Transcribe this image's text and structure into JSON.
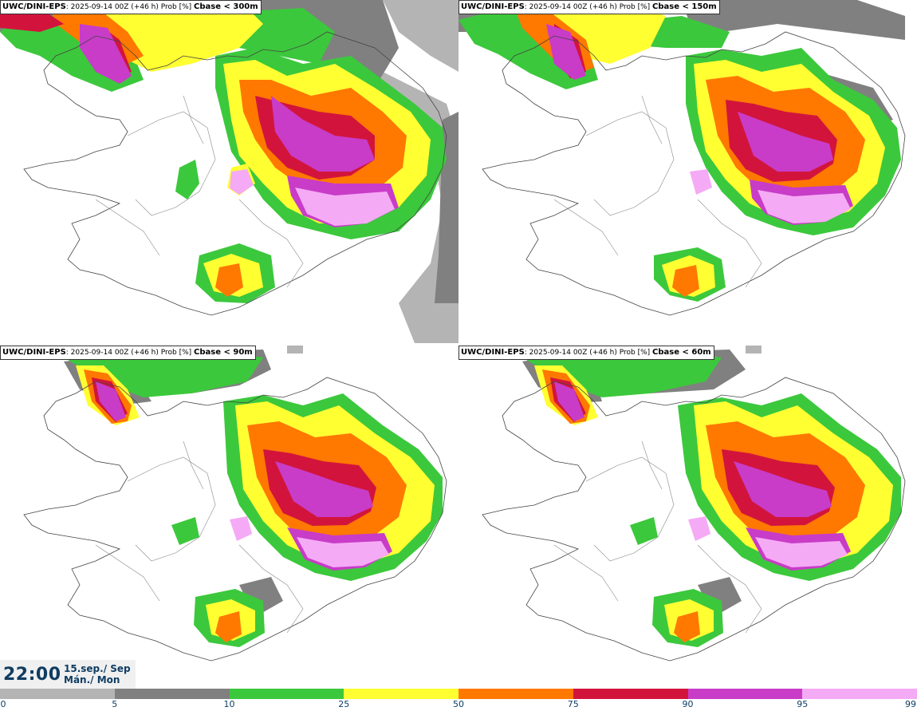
{
  "panels": [
    {
      "model": "UWC/DINI-EPS",
      "run": ": 2025-09-14 00Z (+46 h) Prob [%]",
      "threshold": "Cbase < 300m"
    },
    {
      "model": "UWC/DINI-EPS",
      "run": ": 2025-09-14 00Z (+46 h) Prob [%]",
      "threshold": "Cbase < 150m"
    },
    {
      "model": "UWC/DINI-EPS",
      "run": ": 2025-09-14 00Z (+46 h) Prob [%]",
      "threshold": "Cbase < 90m"
    },
    {
      "model": "UWC/DINI-EPS",
      "run": ": 2025-09-14 00Z (+46 h) Prob [%]",
      "threshold": "Cbase < 60m"
    }
  ],
  "valid_time": {
    "time": "22:00",
    "date": "15.sep./ Sep",
    "weekday": "Mán./ Mon"
  },
  "colorbar": {
    "levels": [
      "0",
      "5",
      "10",
      "25",
      "50",
      "75",
      "90",
      "95",
      "99"
    ],
    "colors": [
      "#ffffff",
      "#b4b4b4",
      "#808080",
      "#3cc83c",
      "#ffff32",
      "#ff7800",
      "#d2143c",
      "#c83cc8",
      "#f5aaf5"
    ]
  }
}
